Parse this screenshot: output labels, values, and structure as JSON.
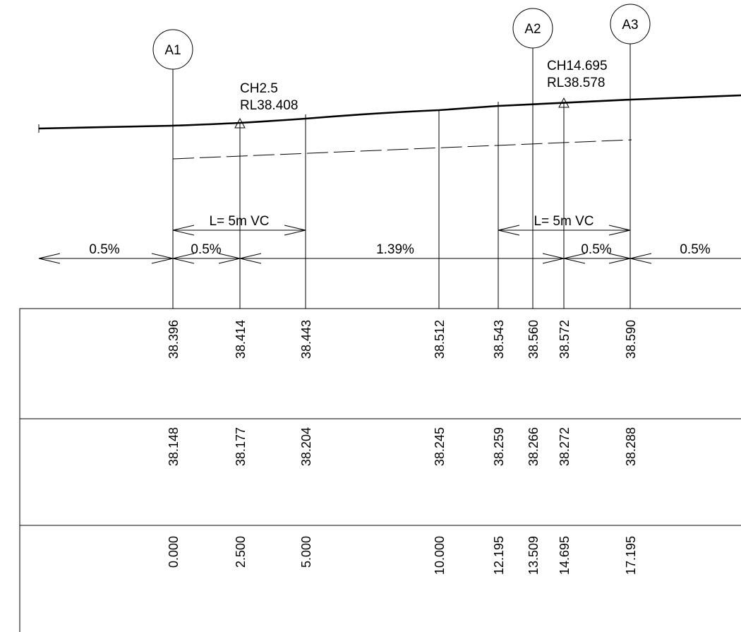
{
  "markers": [
    {
      "label": "A1",
      "chainage": 0.0
    },
    {
      "label": "A2",
      "chainage": 13.509
    },
    {
      "label": "A3",
      "chainage": 17.195
    }
  ],
  "points": [
    {
      "label": "CH2.5",
      "level": "RL38.408",
      "chainage": 2.5
    },
    {
      "label": "CH14.695",
      "level": "RL38.578",
      "chainage": 14.695
    }
  ],
  "vertical_curves": [
    {
      "label": "L= 5m VC",
      "from": 0.0,
      "to": 5.0
    },
    {
      "label": "L= 5m VC",
      "from": 12.195,
      "to": 17.195
    }
  ],
  "grades": [
    "0.5%",
    "0.5%",
    "1.39%",
    "0.5%",
    "0.5%"
  ],
  "table": {
    "design_levels": [
      "38.396",
      "38.414",
      "38.443",
      "38.512",
      "38.543",
      "38.560",
      "38.572",
      "38.590"
    ],
    "existing_levels": [
      "38.148",
      "38.177",
      "38.204",
      "38.245",
      "38.259",
      "38.266",
      "38.272",
      "38.288"
    ],
    "chainages": [
      "0.000",
      "2.500",
      "5.000",
      "10.000",
      "12.195",
      "13.509",
      "14.695",
      "17.195"
    ]
  }
}
